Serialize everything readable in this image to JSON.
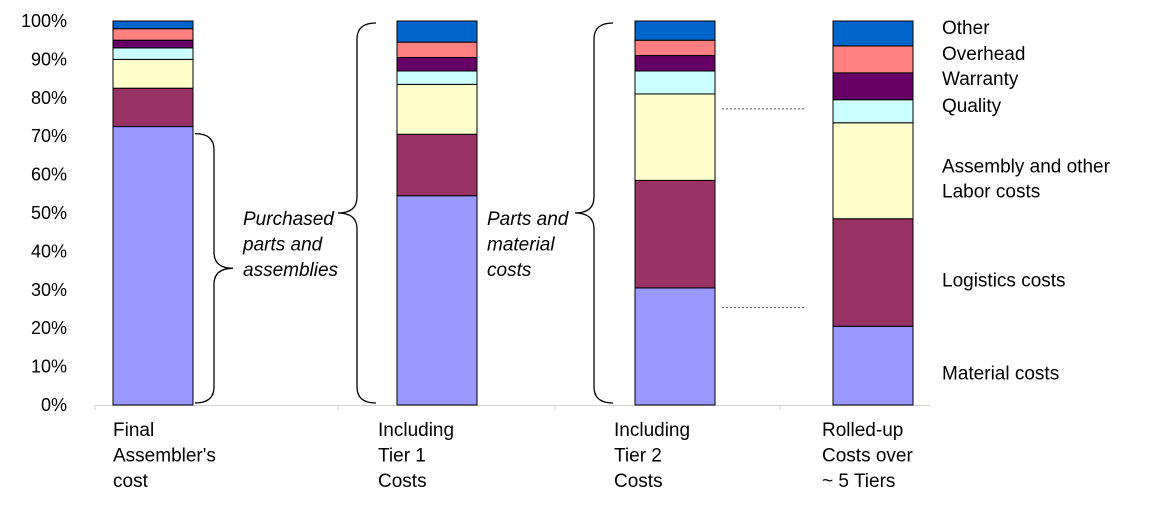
{
  "chart_data": {
    "type": "bar",
    "stacked": true,
    "ylim": [
      0,
      100
    ],
    "y_ticks": [
      "0%",
      "10%",
      "20%",
      "30%",
      "40%",
      "50%",
      "60%",
      "70%",
      "80%",
      "90%",
      "100%"
    ],
    "categories": [
      [
        "Final",
        "Assembler's",
        "cost"
      ],
      [
        "Including",
        "Tier 1",
        "Costs"
      ],
      [
        "Including",
        "Tier 2",
        "Costs"
      ],
      [
        "Rolled-up",
        "Costs over",
        "~ 5 Tiers"
      ]
    ],
    "series": [
      {
        "name": "Material costs",
        "color": "#9999ff",
        "values": [
          72.5,
          54.5,
          30.5,
          20.5
        ]
      },
      {
        "name": "Logistics costs",
        "color": "#993366",
        "values": [
          10,
          16,
          28,
          28
        ]
      },
      {
        "name": "Assembly and other Labor costs",
        "color": "#ffffcc",
        "values": [
          7.5,
          13,
          22.5,
          25
        ]
      },
      {
        "name": "Quality",
        "color": "#ccffff",
        "values": [
          3,
          3.5,
          6,
          6
        ]
      },
      {
        "name": "Warranty",
        "color": "#660066",
        "values": [
          2,
          3.5,
          4,
          7
        ]
      },
      {
        "name": "Overhead",
        "color": "#ff8080",
        "values": [
          3,
          4,
          4,
          7
        ]
      },
      {
        "name": "Other",
        "color": "#0066cc",
        "values": [
          2,
          5.5,
          5,
          6.5
        ]
      }
    ],
    "legend_labels": [
      {
        "series": 6,
        "lines": [
          "Other"
        ]
      },
      {
        "series": 5,
        "lines": [
          "Overhead"
        ]
      },
      {
        "series": 4,
        "lines": [
          "Warranty"
        ]
      },
      {
        "series": 3,
        "lines": [
          "Quality"
        ]
      },
      {
        "series": 2,
        "lines": [
          "Assembly and other",
          "Labor costs"
        ]
      },
      {
        "series": 1,
        "lines": [
          "Logistics costs"
        ]
      },
      {
        "series": 0,
        "lines": [
          "Material costs"
        ]
      }
    ],
    "legend_placement": "right",
    "annotations": [
      {
        "lines": [
          "Purchased",
          "parts and",
          "assemblies"
        ],
        "brace_span": [
          0,
          72.5
        ]
      },
      {
        "lines": [
          "Parts and",
          "material",
          "costs"
        ],
        "brace_span": [
          0,
          100
        ]
      }
    ],
    "annotations_extra_braces": [
      {
        "brace_span": [
          0,
          100
        ]
      }
    ],
    "grid": false
  }
}
